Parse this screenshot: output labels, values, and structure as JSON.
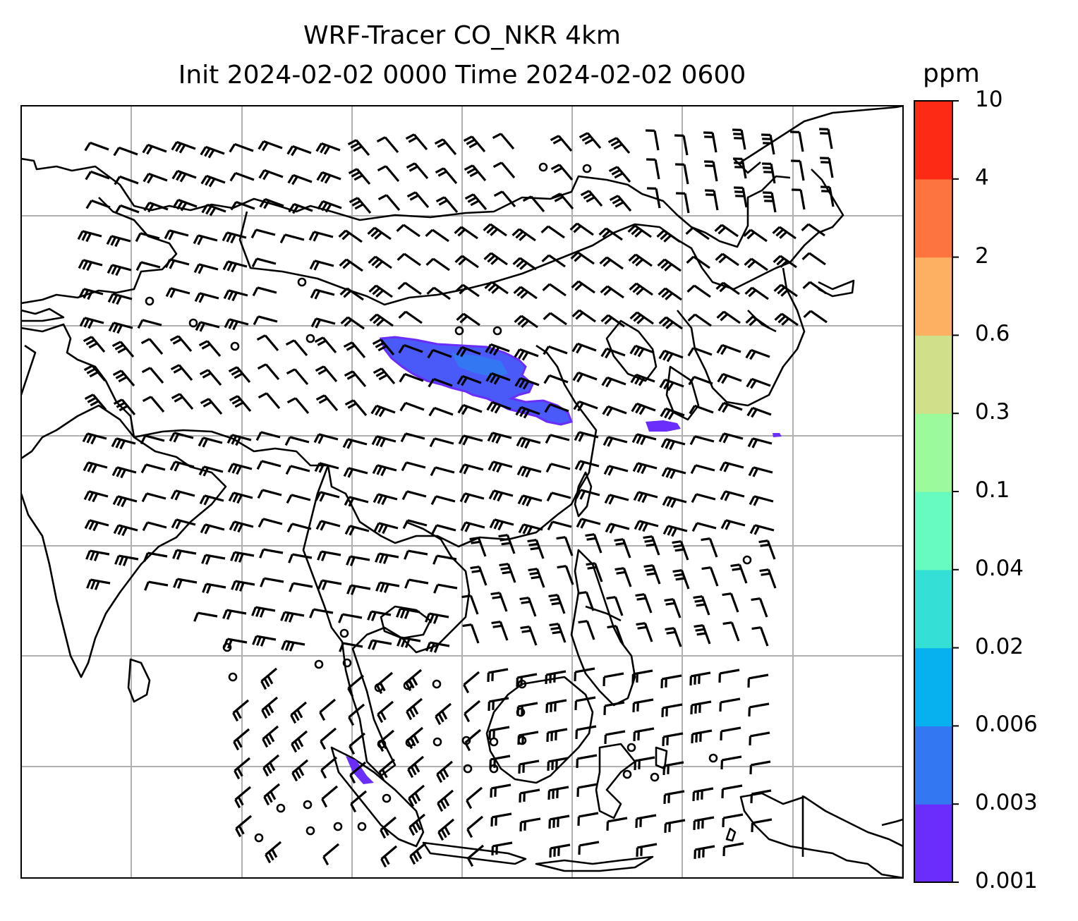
{
  "title": {
    "line1": "WRF-Tracer CO_NKR 4km",
    "line2": "Init 2024-02-02 0000 Time 2024-02-02 0600"
  },
  "colorbar": {
    "unit": "ppm",
    "levels": [
      "0.001",
      "0.003",
      "0.006",
      "0.02",
      "0.04",
      "0.1",
      "0.3",
      "0.6",
      "2",
      "4",
      "10"
    ],
    "colors": [
      "#6a2dfc",
      "#3477f2",
      "#07b0ee",
      "#34e0d6",
      "#67fbbf",
      "#9bfb9a",
      "#d0e088",
      "#fdb061",
      "#fd743f",
      "#fd2b16"
    ]
  },
  "map": {
    "plume_color": "#4a5af8",
    "plume_edge_color": "#6a2dfc",
    "gridline_color": "#b0b0b0",
    "coastline_color": "#000000"
  }
}
